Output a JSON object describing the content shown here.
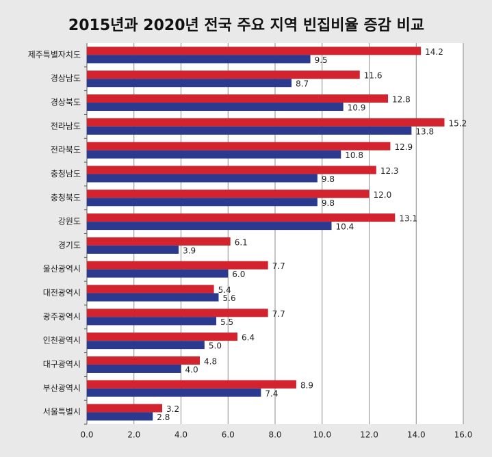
{
  "chart_data": {
    "type": "bar",
    "orientation": "horizontal",
    "title": "2015년과 2020년 전국 주요 지역 빈집비율 증감 비교",
    "categories": [
      "제주특별자치도",
      "경상남도",
      "경상북도",
      "전라남도",
      "전라북도",
      "충청남도",
      "충청북도",
      "강원도",
      "경기도",
      "울산광역시",
      "대전광역시",
      "광주광역시",
      "인천광역시",
      "대구광역시",
      "부산광역시",
      "서울특별시"
    ],
    "series": [
      {
        "color": "#d2232f",
        "values": [
          14.2,
          11.6,
          12.8,
          15.2,
          12.9,
          12.3,
          12.0,
          13.1,
          6.1,
          7.7,
          5.4,
          7.7,
          6.4,
          4.8,
          8.9,
          3.2
        ],
        "value_labels": [
          "14.2",
          "11.6",
          "12.8",
          "15.2",
          "12.9",
          "12.3",
          "12.0",
          "13.1",
          "6.1",
          "7.7",
          "5.4",
          "7.7",
          "6.4",
          "4.8",
          "8.9",
          "3.2"
        ]
      },
      {
        "color": "#2b3a8f",
        "values": [
          9.5,
          8.7,
          10.9,
          13.8,
          10.8,
          9.8,
          9.8,
          10.4,
          3.9,
          6.0,
          5.6,
          5.5,
          5.0,
          4.0,
          7.4,
          2.8
        ],
        "value_labels": [
          "9.5",
          "8.7",
          "10.9",
          "13.8",
          "10.8",
          "9.8",
          "9.8",
          "10.4",
          "3.9",
          "6.0",
          "5.6",
          "5.5",
          "5.0",
          "4.0",
          "7.4",
          "2.8"
        ]
      }
    ],
    "xlim": [
      0,
      16
    ],
    "xticks": [
      {
        "value": 0,
        "label": "0.0"
      },
      {
        "value": 2,
        "label": "2.0"
      },
      {
        "value": 4,
        "label": "4.0"
      },
      {
        "value": 6,
        "label": "6.0"
      },
      {
        "value": 8,
        "label": "8.0"
      },
      {
        "value": 10,
        "label": "10.0"
      },
      {
        "value": 12,
        "label": "12.0"
      },
      {
        "value": 14,
        "label": "14.0"
      },
      {
        "value": 16,
        "label": "16.0"
      }
    ],
    "grid": true
  }
}
